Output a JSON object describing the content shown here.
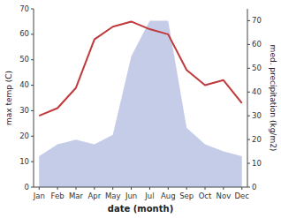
{
  "chart_data": {
    "type": "line",
    "xlabel": "date (month)",
    "ylabel": "max temp (C)",
    "y2label": "med. precipitation (kg/m2)",
    "categories": [
      "Jan",
      "Feb",
      "Mar",
      "Apr",
      "May",
      "Jun",
      "Jul",
      "Aug",
      "Sep",
      "Oct",
      "Nov",
      "Dec"
    ],
    "series": [
      {
        "type": "area",
        "axis": "y2",
        "color": "#c5cce8",
        "values": [
          13,
          18,
          20,
          18,
          22,
          55,
          70,
          70,
          25,
          18,
          15,
          13
        ]
      },
      {
        "type": "line",
        "color": "#c0393b",
        "values": [
          28,
          31,
          39,
          58,
          63,
          65,
          62,
          60,
          46,
          40,
          42,
          33
        ]
      }
    ],
    "ylim": [
      0,
      70
    ],
    "yticks": [
      0,
      10,
      20,
      30,
      40,
      50,
      60,
      70
    ],
    "y2lim": [
      0,
      75
    ],
    "y2ticks": [
      0,
      10,
      20,
      30,
      40,
      50,
      60,
      70
    ],
    "grid": false
  }
}
